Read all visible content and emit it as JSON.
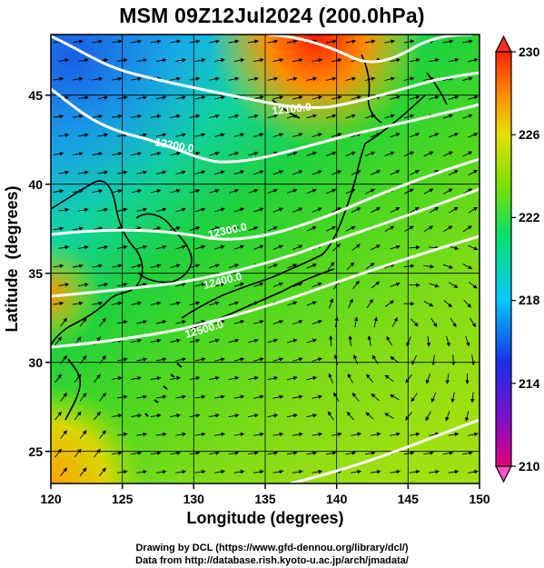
{
  "title": "MSM 09Z12Jul2024 (200.0hPa)",
  "axes": {
    "xlabel": "Longitude (degrees)",
    "ylabel": "Latitude  (degrees)",
    "xticks": [
      "120",
      "125",
      "130",
      "135",
      "140",
      "145",
      "150"
    ],
    "yticks": [
      "25",
      "30",
      "35",
      "40",
      "45"
    ],
    "xlim": [
      120,
      150
    ],
    "ylim": [
      22.4,
      47.6
    ]
  },
  "colorbar": {
    "labels": [
      "230",
      "226",
      "222",
      "218",
      "214",
      "210"
    ],
    "range": [
      210,
      230
    ],
    "colors": [
      "#e3007c",
      "#7a10cc",
      "#1a2fe6",
      "#00c8ff",
      "#00e070",
      "#7fe000",
      "#e6e000",
      "#ff8a00",
      "#ff2200"
    ]
  },
  "contours": {
    "color": "#ffffff",
    "labels": [
      "12100.0",
      "12200.0",
      "12300.0",
      "12400.0",
      "12500.0"
    ]
  },
  "credits": {
    "line1": "Drawing by DCL (https://www.gfd-dennou.org/library/dcl/)",
    "line2": "Data from http://database.rish.kyoto-u.ac.jp/arch/jmadata/"
  }
}
